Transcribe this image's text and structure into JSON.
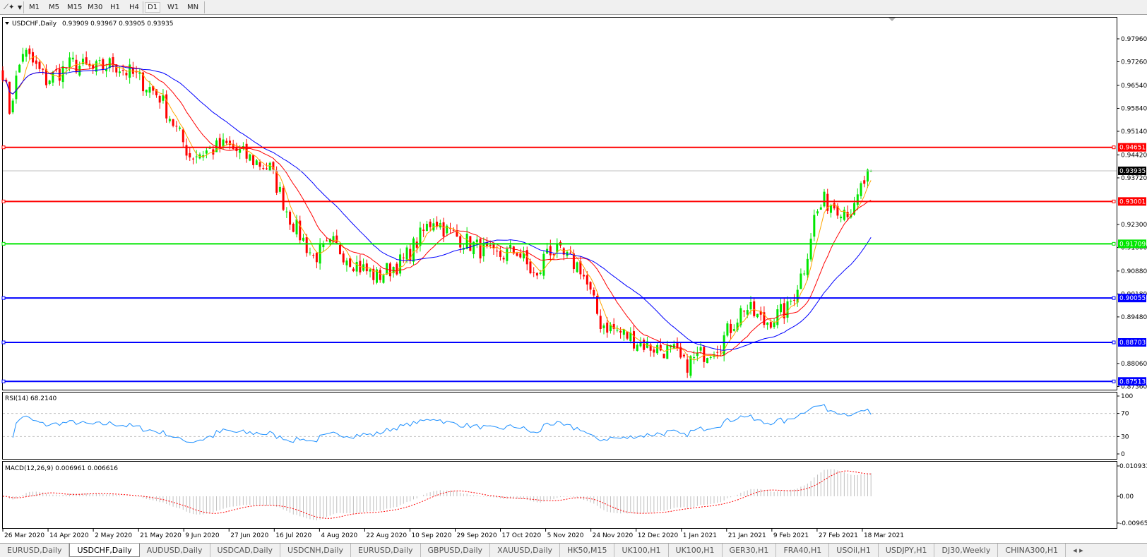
{
  "toolbar": {
    "timeframes": [
      "M1",
      "M5",
      "M15",
      "M30",
      "H1",
      "H4",
      "D1",
      "W1",
      "MN"
    ],
    "active": "D1"
  },
  "chart": {
    "symbol_header": "USDCHF,Daily",
    "ohlc": "0.93909 0.93967 0.93905 0.93935",
    "open": 0.93909,
    "high": 0.93967,
    "low": 0.93905,
    "close": 0.93935,
    "current_price": "0.93935",
    "price_ticks": [
      "0.97960",
      "0.97260",
      "0.96540",
      "0.95840",
      "0.95140",
      "0.94420",
      "0.93720",
      "0.92300",
      "0.91600",
      "0.90880",
      "0.90180",
      "0.89480",
      "0.88060",
      "0.87360"
    ],
    "levels": [
      {
        "price": "0.94651",
        "color": "#ff0000"
      },
      {
        "price": "0.93001",
        "color": "#ff0000"
      },
      {
        "price": "0.91709",
        "color": "#00e600"
      },
      {
        "price": "0.90055",
        "color": "#0000ff"
      },
      {
        "price": "0.88703",
        "color": "#0000ff"
      },
      {
        "price": "0.87513",
        "color": "#0000ff"
      }
    ],
    "colors": {
      "bull": "#00e600",
      "bear": "#ff0000",
      "ma_fast": "#ffa500",
      "ma_mid": "#ff0000",
      "ma_slow": "#0000ff",
      "rsi": "#1e90ff",
      "macd_hist": "#c0c0c0",
      "macd_signal": "#ff0000"
    },
    "date_labels": [
      "26 Mar 2020",
      "14 Apr 2020",
      "2 May 2020",
      "21 May 2020",
      "9 Jun 2020",
      "27 Jun 2020",
      "16 Jul 2020",
      "4 Aug 2020",
      "22 Aug 2020",
      "10 Sep 2020",
      "29 Sep 2020",
      "17 Oct 2020",
      "5 Nov 2020",
      "24 Nov 2020",
      "12 Dec 2020",
      "1 Jan 2021",
      "21 Jan 2021",
      "9 Feb 2021",
      "27 Feb 2021",
      "18 Mar 2021"
    ]
  },
  "rsi": {
    "label": "RSI(14) 68.2140",
    "ticks": [
      "100",
      "70",
      "30",
      "0"
    ]
  },
  "macd": {
    "label": "MACD(12,26,9) 0.006961 0.006616",
    "ticks": [
      "0.010933",
      "0.00",
      "-0.009653"
    ]
  },
  "chart_data": {
    "type": "candlestick",
    "approx_close_path": [
      [
        "2020-03-26",
        0.97
      ],
      [
        "2020-03-30",
        0.958
      ],
      [
        "2020-04-03",
        0.976
      ],
      [
        "2020-04-14",
        0.967
      ],
      [
        "2020-04-24",
        0.972
      ],
      [
        "2020-05-02",
        0.97
      ],
      [
        "2020-05-12",
        0.972
      ],
      [
        "2020-05-21",
        0.968
      ],
      [
        "2020-06-01",
        0.962
      ],
      [
        "2020-06-09",
        0.95
      ],
      [
        "2020-06-12",
        0.944
      ],
      [
        "2020-06-27",
        0.947
      ],
      [
        "2020-07-10",
        0.942
      ],
      [
        "2020-07-16",
        0.94
      ],
      [
        "2020-07-24",
        0.925
      ],
      [
        "2020-08-04",
        0.913
      ],
      [
        "2020-08-12",
        0.917
      ],
      [
        "2020-08-22",
        0.91
      ],
      [
        "2020-08-31",
        0.907
      ],
      [
        "2020-09-10",
        0.912
      ],
      [
        "2020-09-23",
        0.925
      ],
      [
        "2020-09-29",
        0.921
      ],
      [
        "2020-10-10",
        0.916
      ],
      [
        "2020-10-17",
        0.913
      ],
      [
        "2020-10-28",
        0.915
      ],
      [
        "2020-11-05",
        0.906
      ],
      [
        "2020-11-10",
        0.916
      ],
      [
        "2020-11-24",
        0.91
      ],
      [
        "2020-12-02",
        0.893
      ],
      [
        "2020-12-12",
        0.889
      ],
      [
        "2020-12-22",
        0.886
      ],
      [
        "2021-01-01",
        0.884
      ],
      [
        "2021-01-06",
        0.88
      ],
      [
        "2021-01-21",
        0.887
      ],
      [
        "2021-02-01",
        0.898
      ],
      [
        "2021-02-09",
        0.893
      ],
      [
        "2021-02-18",
        0.897
      ],
      [
        "2021-02-25",
        0.91
      ],
      [
        "2021-03-02",
        0.925
      ],
      [
        "2021-03-05",
        0.93
      ],
      [
        "2021-03-18",
        0.927
      ],
      [
        "2021-03-22",
        0.934
      ],
      [
        "2021-03-25",
        0.93935
      ]
    ]
  },
  "tabs": [
    "EURUSD,Daily",
    "USDCHF,Daily",
    "AUDUSD,Daily",
    "USDCAD,Daily",
    "USDCNH,Daily",
    "EURUSD,Daily",
    "GBPUSD,Daily",
    "XAUUSD,Daily",
    "HK50,M15",
    "UK100,H1",
    "UK100,H1",
    "GER30,H1",
    "FRA40,H1",
    "USOil,H1",
    "USDJPY,H1",
    "DJ30,Weekly",
    "CHINA300,H1"
  ],
  "active_tab": "USDCHF,Daily"
}
